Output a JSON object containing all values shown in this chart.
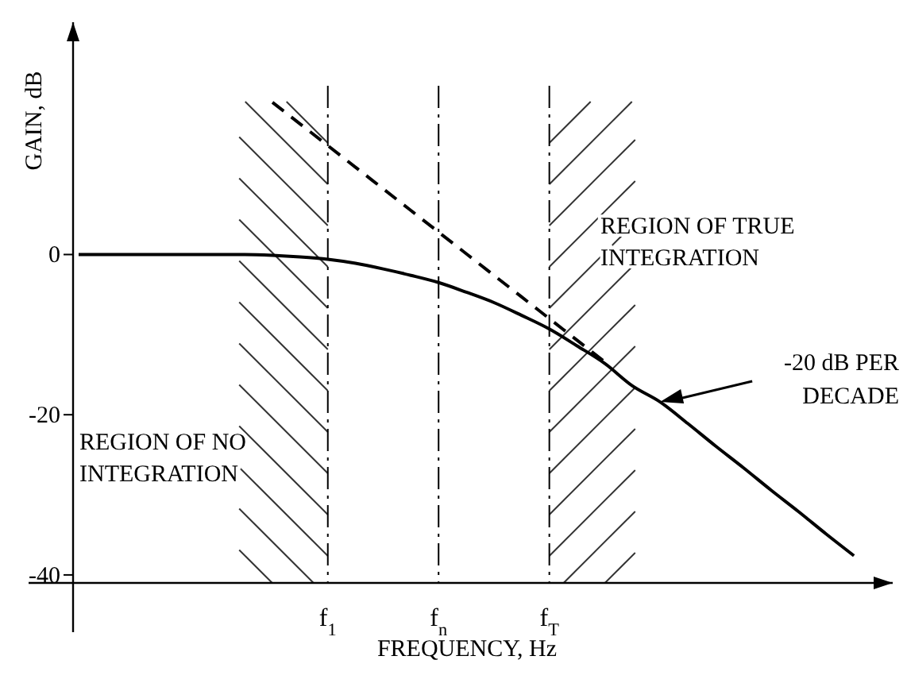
{
  "chart_data": {
    "type": "line",
    "xlabel": "FREQUENCY, Hz",
    "ylabel": "GAIN, dB",
    "categories": [
      null,
      null,
      null,
      null,
      null,
      null,
      null,
      null,
      null,
      "f$_{1}$",
      null,
      null,
      null,
      "f$_{n}$",
      null,
      null,
      null,
      "f$_{T}$",
      null,
      null,
      null,
      null,
      null,
      null,
      null,
      null,
      null,
      null,
      null,
      null
    ],
    "ylim": [
      -41,
      29
    ],
    "yticks": [
      0,
      -20,
      -40
    ],
    "grid": "x",
    "series": [
      {
        "color": "#000000",
        "line_style": "solid",
        "values": [
          0,
          0,
          0,
          0,
          0,
          0,
          0,
          -0.1,
          -0.3,
          -0.6,
          -1.1,
          -1.8,
          -2.6,
          -3.5,
          -4.7,
          -6,
          -7.6,
          -9.3,
          -11.4,
          -13.6,
          -16.4,
          -18.4,
          -21.1,
          -23.9,
          -26.6,
          -29.4,
          -32.1,
          -34.9,
          -37.6,
          null
        ]
      },
      {
        "color": "#000000",
        "line_style": "dashed",
        "values": [
          null,
          null,
          null,
          null,
          null,
          null,
          null,
          19.0,
          16.3,
          13.6,
          10.9,
          8.2,
          5.5,
          2.8,
          0.1,
          -2.6,
          -5.3,
          -8.0,
          -10.7,
          -13.4,
          null,
          null,
          null,
          null,
          null,
          null,
          null,
          null,
          null,
          null
        ]
      }
    ],
    "annotations": [
      "REGION OF NO\nINTEGRATION",
      "REGION OF TRUE\nINTEGRATION",
      "-20 dB PER\nDECADE"
    ]
  }
}
